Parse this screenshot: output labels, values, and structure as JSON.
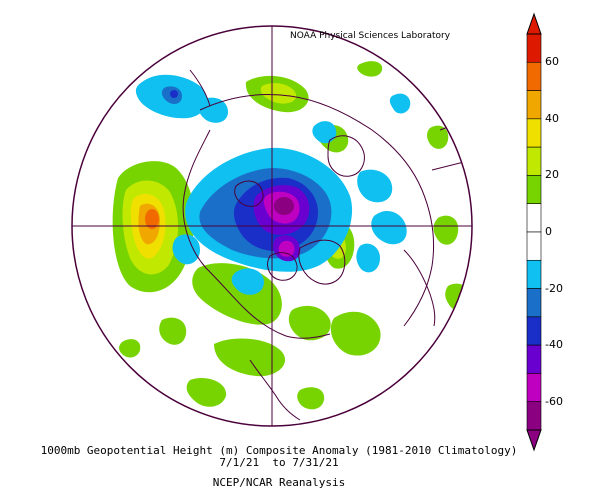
{
  "credit": "NOAA Physical Sciences Laboratory",
  "caption": {
    "line1": "1000mb Geopotential Height (m) Composite Anomaly (1981-2010 Climatology)",
    "line2": "7/1/21  to 7/31/21",
    "line3": "NCEP/NCAR Reanalysis"
  },
  "colorbar": {
    "labels": [
      "60",
      "40",
      "20",
      "0",
      "-20",
      "-40",
      "-60"
    ],
    "colors": [
      "#dd1a00",
      "#f06a00",
      "#f0a800",
      "#f0e000",
      "#c0e800",
      "#78d400",
      "#ffffff",
      "#ffffff",
      "#10c0f0",
      "#1a70c8",
      "#1a2ec8",
      "#6a00d0",
      "#c000c0",
      "#8a0080"
    ]
  },
  "map": {
    "projection": "polar stereographic (north pole)",
    "boundary_color": "#4a003a"
  }
}
